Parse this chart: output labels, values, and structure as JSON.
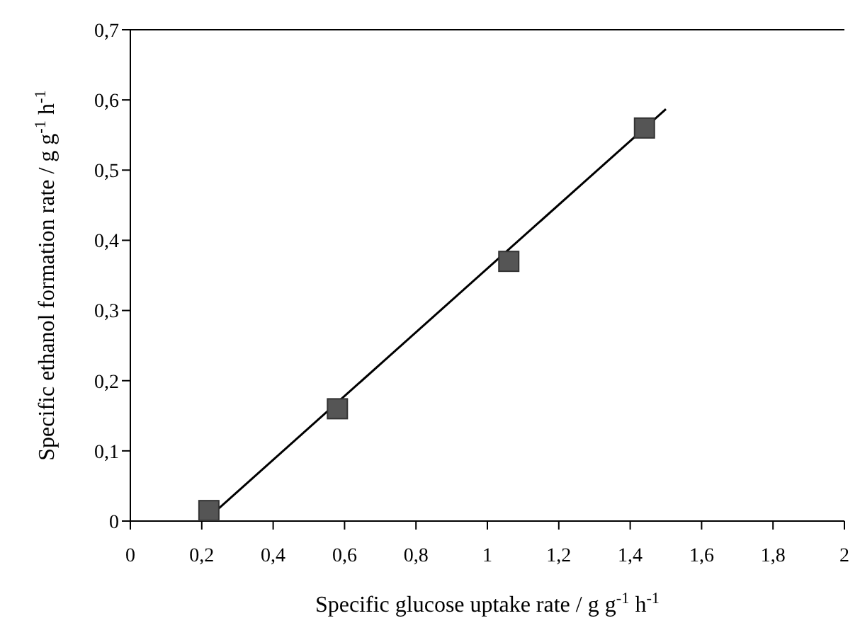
{
  "chart_data": {
    "type": "scatter",
    "xlabel": "Specific glucose uptake rate / g g$^{-1}$ h$^{-1}$",
    "ylabel": "Specific ethanol formation rate / g g$^{-1}$ h$^{-1}$",
    "marker": "square",
    "grid": false,
    "series": [
      {
        "color": "#555555",
        "x": [
          0.22,
          0.58,
          1.06,
          1.44
        ],
        "values": [
          0.015,
          0.16,
          0.37,
          0.56
        ]
      },
      {
        "type": "line",
        "marker": "none",
        "color": "#000000",
        "x": [
          0.23,
          1.5
        ],
        "values": [
          0.01,
          0.587
        ]
      }
    ],
    "xlim": [
      0,
      2
    ],
    "xticks": [
      0,
      {
        "value": 0.2,
        "label": "0,2"
      },
      {
        "value": 0.4,
        "label": "0,4"
      },
      {
        "value": 0.6,
        "label": "0,6"
      },
      {
        "value": 0.8,
        "label": "0,8"
      },
      1,
      {
        "value": 1.2,
        "label": "1,2"
      },
      {
        "value": 1.4,
        "label": "1,4"
      },
      {
        "value": 1.6,
        "label": "1,6"
      },
      {
        "value": 1.8,
        "label": "1,8"
      },
      2
    ],
    "ylim": [
      0,
      0.7
    ],
    "yticks": [
      0,
      {
        "value": 0.1,
        "label": "0,1"
      },
      {
        "value": 0.2,
        "label": "0,2"
      },
      {
        "value": 0.3,
        "label": "0,3"
      },
      {
        "value": 0.4,
        "label": "0,4"
      },
      {
        "value": 0.5,
        "label": "0,5"
      },
      {
        "value": 0.6,
        "label": "0,6"
      },
      {
        "value": 0.7,
        "label": "0,7"
      }
    ]
  }
}
